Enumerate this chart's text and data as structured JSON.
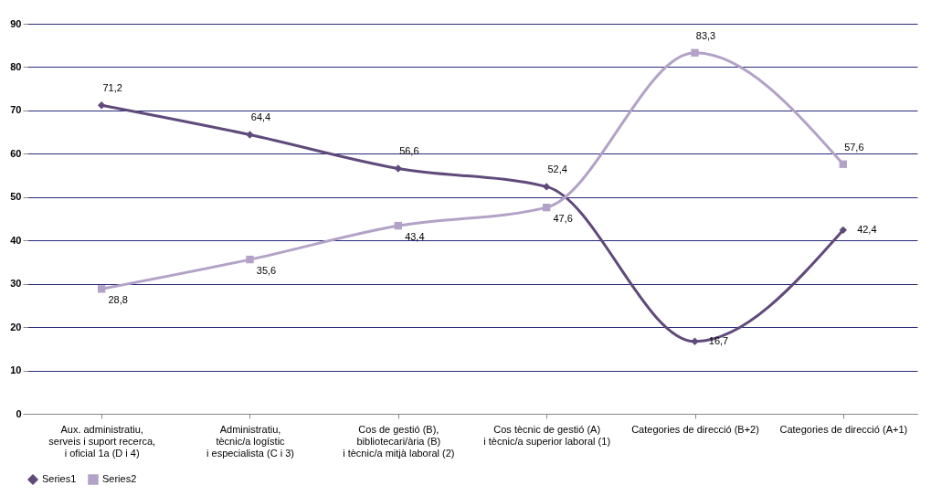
{
  "chart_data": {
    "type": "line",
    "categories": [
      "Aux. administratiu,\nserveis i suport recerca,\ni oficial 1a (D i 4)",
      "Administratiu,\ntècnic/a logístic\ni especialista (C i 3)",
      "Cos de gestió (B),\nbibliotecari/ària (B)\ni tècnic/a mitjà laboral (2)",
      "Cos tècnic de gestió (A)\ni tècnic/a superior laboral (1)",
      "Categories de direcció (B+2)",
      "Categories de direcció (A+1)"
    ],
    "series": [
      {
        "name": "Series1",
        "color": "#604a7b",
        "marker": "diamond",
        "values": [
          71.2,
          64.4,
          56.6,
          52.4,
          16.7,
          42.4
        ],
        "value_labels": [
          "71,2",
          "64,4",
          "56,6",
          "52,4",
          "16,7",
          "42,4"
        ]
      },
      {
        "name": "Series2",
        "color": "#b3a2c7",
        "marker": "square",
        "values": [
          28.8,
          35.6,
          43.4,
          47.6,
          83.3,
          57.6
        ],
        "value_labels": [
          "28,8",
          "35,6",
          "43,4",
          "47,6",
          "83,3",
          "57,6"
        ]
      }
    ],
    "ylim": [
      0,
      90
    ],
    "yticks": [
      0,
      10,
      20,
      30,
      40,
      50,
      60,
      70,
      80,
      90
    ],
    "grid": "y",
    "legend": "bottom"
  }
}
